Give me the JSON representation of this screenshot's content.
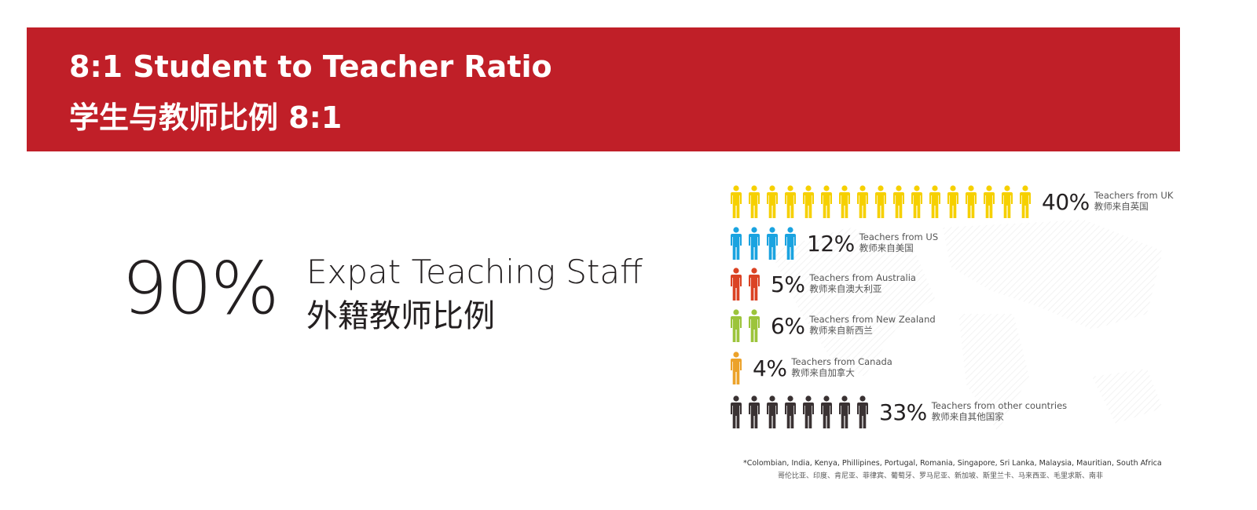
{
  "banner": {
    "title_en": "8:1 Student to Teacher Ratio",
    "title_zh": "学生与教师比例 8:1",
    "color": "#c01f28"
  },
  "expat": {
    "value": "90%",
    "label_en": "Expat Teaching Staff",
    "label_zh": "外籍教师比例"
  },
  "chart_data": {
    "type": "pictograph",
    "rows": [
      {
        "percent": "40%",
        "value": 40,
        "icons": 17,
        "label_en": "Teachers from UK",
        "label_zh": "教师来自英国",
        "color": "#f6d000"
      },
      {
        "percent": "12%",
        "value": 12,
        "icons": 4,
        "label_en": "Teachers from US",
        "label_zh": "教师来自美国",
        "color": "#1aa3e0"
      },
      {
        "percent": "5%",
        "value": 5,
        "icons": 2,
        "label_en": "Teachers from Australia",
        "label_zh": "教师来自澳大利亚",
        "color": "#db4324"
      },
      {
        "percent": "6%",
        "value": 6,
        "icons": 2,
        "label_en": "Teachers from New Zealand",
        "label_zh": "教师来自新西兰",
        "color": "#9cc43b"
      },
      {
        "percent": "4%",
        "value": 4,
        "icons": 1,
        "label_en": "Teachers from Canada",
        "label_zh": "教师来自加拿大",
        "color": "#eca22a"
      },
      {
        "percent": "33%",
        "value": 33,
        "icons": 8,
        "label_en": "Teachers from other countries",
        "label_zh": "教师来自其他国家",
        "color": "#3a3233"
      }
    ]
  },
  "footnote": {
    "en": "*Colombian, India, Kenya, Phillipines, Portugal, Romania, Singapore, Sri Lanka, Malaysia, Mauritian, South Africa",
    "zh": "哥伦比亚、印度、肯尼亚、菲律宾、葡萄牙、罗马尼亚、新加坡、斯里兰卡、马来西亚、毛里求斯、南非"
  }
}
